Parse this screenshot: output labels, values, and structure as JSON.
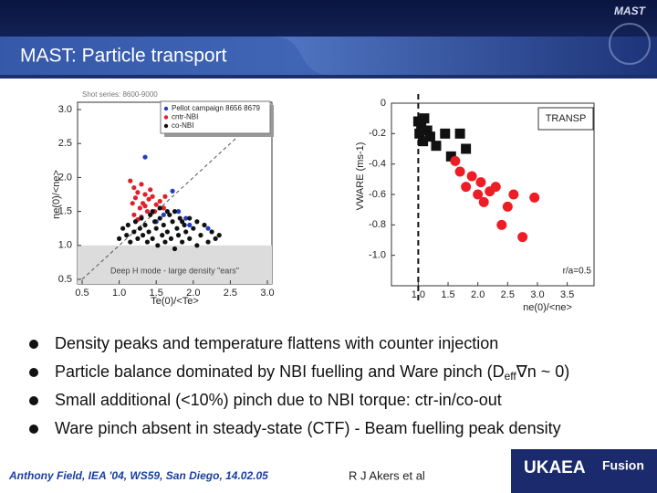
{
  "header": {
    "title": "MAST: Particle transport",
    "logo": "MAST"
  },
  "chart_data": [
    {
      "type": "scatter",
      "annotations": [
        "Shot series: 8600-9000",
        "Deep H mode - large density \"ears\""
      ],
      "xlabel": "Te(0)/<Te>",
      "ylabel": "ne(0)/<ne>",
      "xlim": [
        0.5,
        3.0
      ],
      "ylim": [
        0.5,
        3.0
      ],
      "xticks": [
        0.5,
        {
          "value": 1,
          "label": "1.0"
        },
        1.5,
        {
          "value": 2,
          "label": "2.0"
        },
        2.5,
        {
          "value": 3,
          "label": "3.0"
        }
      ],
      "yticks": [
        0.5,
        {
          "value": 1,
          "label": "1.0"
        },
        1.5,
        {
          "value": 2,
          "label": "2.0"
        },
        2.5,
        {
          "value": 3,
          "label": "3.0"
        }
      ],
      "shade_below": 1,
      "series": [
        {
          "name": "Pellot campaign 8656 8679",
          "color": "#1f3fc4",
          "marker": "dot",
          "x": [
            1.35,
            1.72,
            1.9,
            1.95,
            2.2,
            1.6,
            1.5,
            1.8
          ],
          "values": [
            2.3,
            1.8,
            1.4,
            1.3,
            1.25,
            1.45,
            1.35,
            1.5
          ]
        },
        {
          "name": "cntr-NBI",
          "color": "#e0202a",
          "marker": "dot",
          "x": [
            1.15,
            1.2,
            1.22,
            1.25,
            1.3,
            1.32,
            1.35,
            1.4,
            1.45,
            1.5,
            1.2,
            1.28,
            1.38,
            1.42,
            1.55,
            1.6,
            1.18,
            1.3,
            1.48,
            1.25,
            1.35,
            1.62
          ],
          "values": [
            1.95,
            1.85,
            1.7,
            1.78,
            1.9,
            1.62,
            1.75,
            1.68,
            1.72,
            1.6,
            1.45,
            1.55,
            1.5,
            1.82,
            1.65,
            1.55,
            1.62,
            1.42,
            1.5,
            1.38,
            1.58,
            1.72
          ]
        },
        {
          "name": "co-NBI",
          "color": "#111111",
          "marker": "dot",
          "x": [
            1.0,
            1.05,
            1.1,
            1.12,
            1.15,
            1.2,
            1.22,
            1.25,
            1.28,
            1.3,
            1.32,
            1.35,
            1.38,
            1.4,
            1.42,
            1.45,
            1.48,
            1.5,
            1.52,
            1.55,
            1.58,
            1.6,
            1.62,
            1.65,
            1.68,
            1.7,
            1.72,
            1.75,
            1.78,
            1.8,
            1.82,
            1.85,
            1.88,
            1.9,
            1.95,
            2.0,
            2.05,
            2.1,
            2.15,
            2.2,
            2.25,
            2.3,
            2.35,
            1.45,
            1.55,
            1.65,
            1.75,
            1.85,
            1.95,
            2.05
          ],
          "values": [
            1.1,
            1.25,
            1.15,
            1.3,
            1.05,
            1.2,
            1.35,
            1.1,
            1.25,
            1.4,
            1.15,
            1.3,
            1.05,
            1.2,
            1.45,
            1.1,
            1.35,
            1.25,
            1.0,
            1.4,
            1.15,
            1.3,
            1.05,
            1.2,
            1.45,
            1.1,
            1.35,
            0.95,
            1.25,
            1.15,
            1.4,
            1.05,
            1.3,
            1.2,
            1.1,
            1.25,
            1.0,
            1.15,
            1.3,
            1.05,
            1.2,
            1.1,
            1.15,
            1.5,
            1.55,
            1.5,
            1.5,
            1.35,
            1.4,
            1.35
          ]
        }
      ]
    },
    {
      "type": "scatter",
      "annotations": [
        "TRANSP",
        "r/a=0.5"
      ],
      "xlabel": "ne(0)/<ne>",
      "ylabel": "VWARE (ms-1)",
      "xlim": [
        0.55,
        3.95
      ],
      "ylim": [
        -1.2,
        0
      ],
      "xticks": [
        {
          "value": 1,
          "label": "1.0"
        },
        1.5,
        {
          "value": 2,
          "label": "2.0"
        },
        2.5,
        {
          "value": 3,
          "label": "3.0"
        },
        3.5
      ],
      "yticks": [
        0,
        -0.2,
        -0.4,
        -0.6,
        -0.8,
        {
          "value": -1,
          "label": "-1.0"
        }
      ],
      "vline": 1,
      "series": [
        {
          "color": "#111111",
          "marker": "square",
          "x": [
            1.0,
            1.02,
            1.05,
            1.08,
            1.1,
            1.15,
            1.2,
            1.3,
            1.45,
            1.55,
            1.7,
            1.8
          ],
          "values": [
            -0.12,
            -0.2,
            -0.15,
            -0.25,
            -0.1,
            -0.18,
            -0.22,
            -0.28,
            -0.2,
            -0.35,
            -0.2,
            -0.3
          ]
        },
        {
          "color": "#ee1c24",
          "marker": "circle",
          "x": [
            1.62,
            1.7,
            1.8,
            1.9,
            2.0,
            2.05,
            2.1,
            2.2,
            2.3,
            2.4,
            2.5,
            2.6,
            2.75,
            2.95
          ],
          "values": [
            -0.38,
            -0.45,
            -0.55,
            -0.48,
            -0.6,
            -0.52,
            -0.65,
            -0.58,
            -0.55,
            -0.8,
            -0.68,
            -0.6,
            -0.88,
            -0.62
          ]
        }
      ]
    }
  ],
  "bullets": [
    [
      "Density peaks and temperature flattens with counter injection"
    ],
    [
      "Particle balance dominated by NBI fuelling and Ware pinch (D",
      "eff",
      "∇n ~ 0)"
    ],
    [
      "Small additional (<10%) pinch due to NBI torque: ctr-in/co-out"
    ],
    [
      "Ware pinch absent in steady-state (CTF) - Beam fuelling peak density"
    ]
  ],
  "footer": {
    "citation": "Anthony Field, IEA '04, WS59, San Diego, 14.02.05",
    "author": "R J Akers et al",
    "logo_main": "UKAEA",
    "logo_sub": "Fusion"
  }
}
